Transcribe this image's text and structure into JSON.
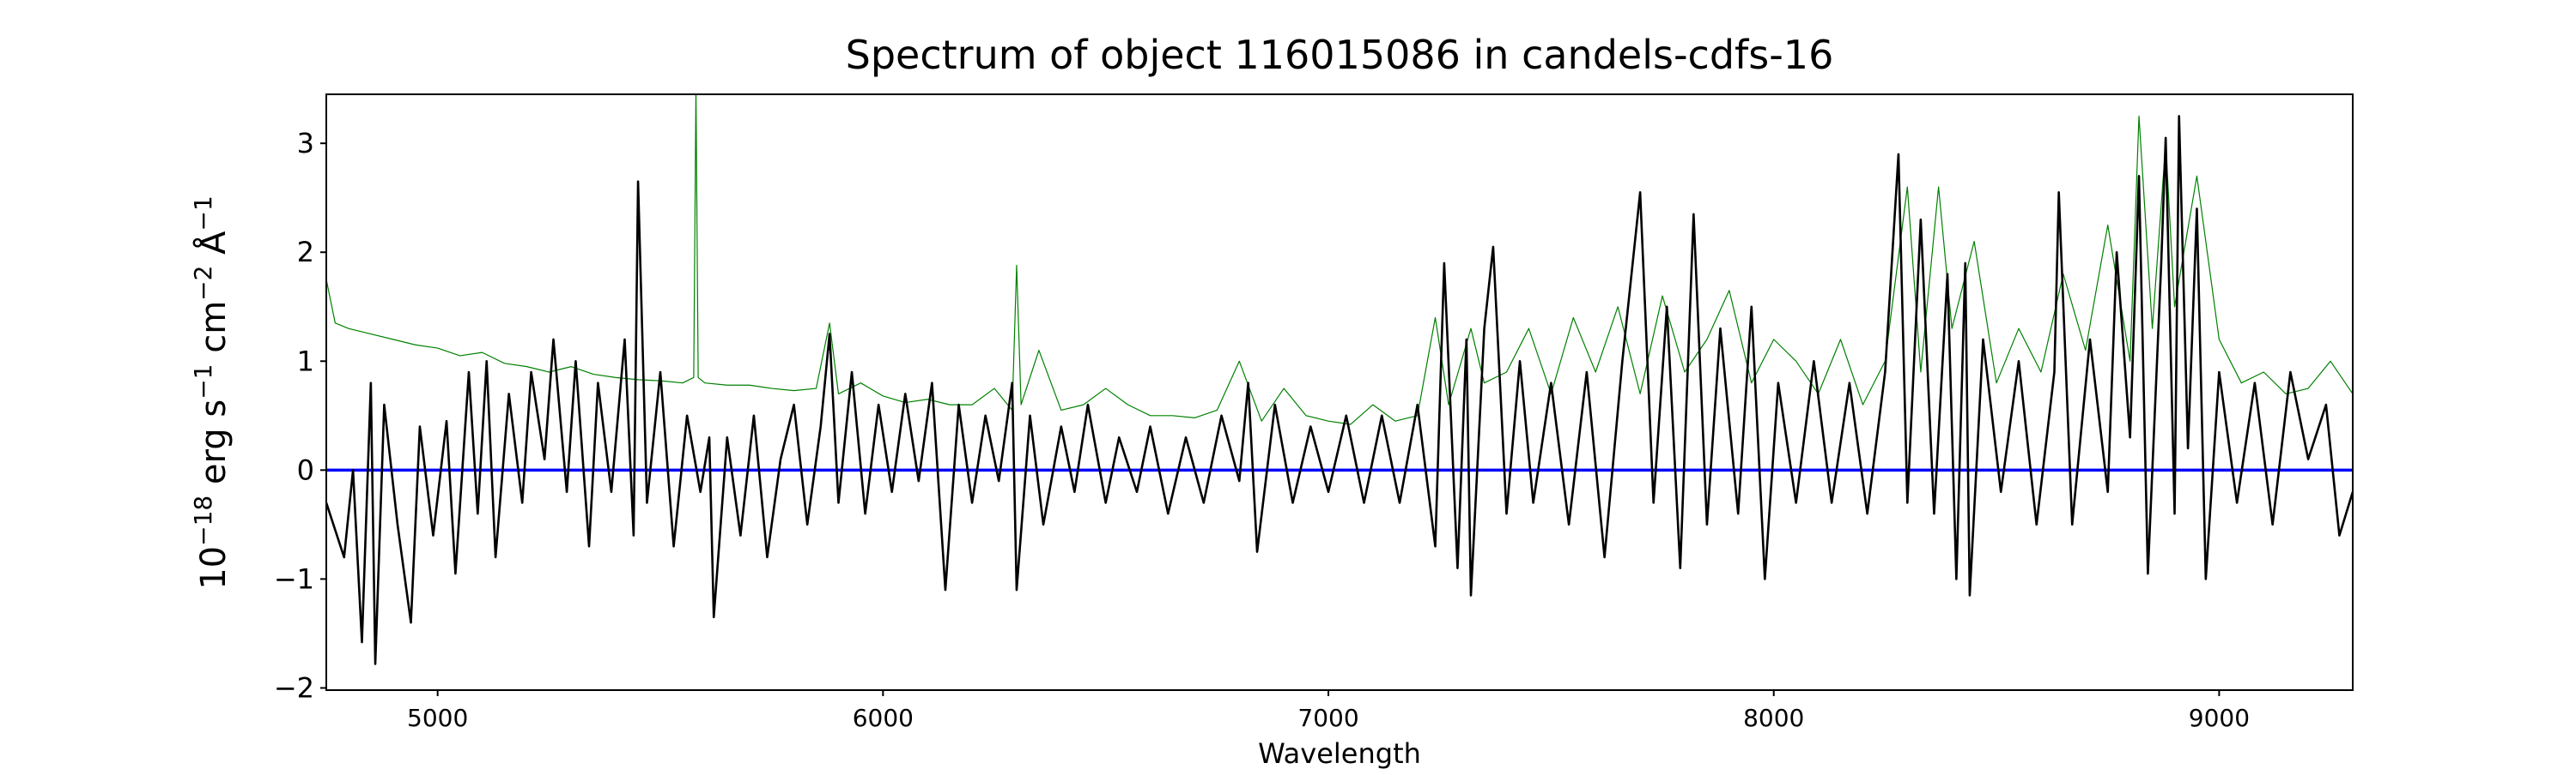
{
  "chart_data": {
    "type": "line",
    "title": "Spectrum of object 116015086 in candels-cdfs-16",
    "xlabel": "Wavelength",
    "ylabel": "10^{-18} erg s^{-1} cm^{-2} Å^{-1}",
    "ylabel_parts": {
      "base": "10",
      "exp1": "−18",
      "t1": " erg s",
      "exp2": "−1",
      "t2": " cm",
      "exp3": "−2",
      "t3": " Å",
      "exp4": "−1"
    },
    "xlim": [
      4750,
      9300
    ],
    "ylim": [
      -2.02,
      3.45
    ],
    "xticks": [
      5000,
      6000,
      7000,
      8000,
      9000
    ],
    "yticks": [
      -2,
      -1,
      0,
      1,
      2,
      3
    ],
    "grid": false,
    "series": [
      {
        "color": "#008000",
        "width": "thin",
        "points": [
          [
            4750,
            1.75
          ],
          [
            4770,
            1.35
          ],
          [
            4800,
            1.3
          ],
          [
            4850,
            1.25
          ],
          [
            4900,
            1.2
          ],
          [
            4950,
            1.15
          ],
          [
            5000,
            1.12
          ],
          [
            5050,
            1.05
          ],
          [
            5100,
            1.08
          ],
          [
            5150,
            0.98
          ],
          [
            5200,
            0.95
          ],
          [
            5250,
            0.9
          ],
          [
            5300,
            0.95
          ],
          [
            5350,
            0.88
          ],
          [
            5400,
            0.85
          ],
          [
            5450,
            0.83
          ],
          [
            5500,
            0.82
          ],
          [
            5550,
            0.8
          ],
          [
            5575,
            0.85
          ],
          [
            5580,
            3.5
          ],
          [
            5585,
            0.85
          ],
          [
            5600,
            0.8
          ],
          [
            5650,
            0.78
          ],
          [
            5700,
            0.78
          ],
          [
            5750,
            0.75
          ],
          [
            5800,
            0.73
          ],
          [
            5850,
            0.75
          ],
          [
            5880,
            1.35
          ],
          [
            5900,
            0.7
          ],
          [
            5950,
            0.8
          ],
          [
            6000,
            0.68
          ],
          [
            6050,
            0.62
          ],
          [
            6100,
            0.65
          ],
          [
            6150,
            0.6
          ],
          [
            6200,
            0.6
          ],
          [
            6250,
            0.75
          ],
          [
            6290,
            0.55
          ],
          [
            6300,
            1.88
          ],
          [
            6310,
            0.6
          ],
          [
            6350,
            1.1
          ],
          [
            6400,
            0.55
          ],
          [
            6450,
            0.6
          ],
          [
            6500,
            0.75
          ],
          [
            6550,
            0.6
          ],
          [
            6600,
            0.5
          ],
          [
            6650,
            0.5
          ],
          [
            6700,
            0.48
          ],
          [
            6750,
            0.55
          ],
          [
            6800,
            1.0
          ],
          [
            6850,
            0.45
          ],
          [
            6900,
            0.75
          ],
          [
            6950,
            0.5
          ],
          [
            7000,
            0.45
          ],
          [
            7050,
            0.42
          ],
          [
            7100,
            0.6
          ],
          [
            7150,
            0.45
          ],
          [
            7200,
            0.5
          ],
          [
            7240,
            1.4
          ],
          [
            7270,
            0.6
          ],
          [
            7320,
            1.3
          ],
          [
            7350,
            0.8
          ],
          [
            7400,
            0.9
          ],
          [
            7450,
            1.3
          ],
          [
            7500,
            0.7
          ],
          [
            7550,
            1.4
          ],
          [
            7600,
            0.9
          ],
          [
            7650,
            1.5
          ],
          [
            7700,
            0.7
          ],
          [
            7750,
            1.6
          ],
          [
            7800,
            0.9
          ],
          [
            7850,
            1.2
          ],
          [
            7900,
            1.65
          ],
          [
            7950,
            0.8
          ],
          [
            8000,
            1.2
          ],
          [
            8050,
            1.0
          ],
          [
            8100,
            0.7
          ],
          [
            8150,
            1.2
          ],
          [
            8200,
            0.6
          ],
          [
            8250,
            1.0
          ],
          [
            8300,
            2.6
          ],
          [
            8330,
            0.9
          ],
          [
            8370,
            2.6
          ],
          [
            8400,
            1.3
          ],
          [
            8450,
            2.1
          ],
          [
            8500,
            0.8
          ],
          [
            8550,
            1.3
          ],
          [
            8600,
            0.9
          ],
          [
            8650,
            1.8
          ],
          [
            8700,
            1.1
          ],
          [
            8750,
            2.25
          ],
          [
            8800,
            1.0
          ],
          [
            8820,
            3.25
          ],
          [
            8850,
            1.3
          ],
          [
            8880,
            3.0
          ],
          [
            8900,
            1.5
          ],
          [
            8950,
            2.7
          ],
          [
            9000,
            1.2
          ],
          [
            9050,
            0.8
          ],
          [
            9100,
            0.9
          ],
          [
            9150,
            0.7
          ],
          [
            9200,
            0.75
          ],
          [
            9250,
            1.0
          ],
          [
            9300,
            0.7
          ]
        ]
      },
      {
        "color": "#0000ff",
        "width": "medium",
        "points": [
          [
            4750,
            0
          ],
          [
            9300,
            0
          ]
        ]
      },
      {
        "color": "#000000",
        "width": "thick",
        "points": [
          [
            4750,
            -0.3
          ],
          [
            4790,
            -0.8
          ],
          [
            4810,
            0.0
          ],
          [
            4830,
            -1.58
          ],
          [
            4850,
            0.8
          ],
          [
            4860,
            -1.78
          ],
          [
            4880,
            0.6
          ],
          [
            4910,
            -0.5
          ],
          [
            4940,
            -1.4
          ],
          [
            4960,
            0.4
          ],
          [
            4990,
            -0.6
          ],
          [
            5020,
            0.45
          ],
          [
            5040,
            -0.95
          ],
          [
            5070,
            0.9
          ],
          [
            5090,
            -0.4
          ],
          [
            5110,
            1.0
          ],
          [
            5130,
            -0.8
          ],
          [
            5160,
            0.7
          ],
          [
            5190,
            -0.3
          ],
          [
            5210,
            0.9
          ],
          [
            5240,
            0.1
          ],
          [
            5260,
            1.2
          ],
          [
            5290,
            -0.2
          ],
          [
            5310,
            1.0
          ],
          [
            5340,
            -0.7
          ],
          [
            5360,
            0.8
          ],
          [
            5390,
            -0.2
          ],
          [
            5420,
            1.2
          ],
          [
            5440,
            -0.6
          ],
          [
            5450,
            2.65
          ],
          [
            5470,
            -0.3
          ],
          [
            5500,
            0.9
          ],
          [
            5530,
            -0.7
          ],
          [
            5560,
            0.5
          ],
          [
            5590,
            -0.2
          ],
          [
            5610,
            0.3
          ],
          [
            5620,
            -1.35
          ],
          [
            5650,
            0.3
          ],
          [
            5680,
            -0.6
          ],
          [
            5710,
            0.5
          ],
          [
            5740,
            -0.8
          ],
          [
            5770,
            0.1
          ],
          [
            5800,
            0.6
          ],
          [
            5830,
            -0.5
          ],
          [
            5860,
            0.4
          ],
          [
            5880,
            1.25
          ],
          [
            5900,
            -0.3
          ],
          [
            5930,
            0.9
          ],
          [
            5960,
            -0.4
          ],
          [
            5990,
            0.6
          ],
          [
            6020,
            -0.2
          ],
          [
            6050,
            0.7
          ],
          [
            6080,
            -0.1
          ],
          [
            6110,
            0.8
          ],
          [
            6140,
            -1.1
          ],
          [
            6170,
            0.6
          ],
          [
            6200,
            -0.3
          ],
          [
            6230,
            0.5
          ],
          [
            6260,
            -0.1
          ],
          [
            6290,
            0.8
          ],
          [
            6300,
            -1.1
          ],
          [
            6330,
            0.5
          ],
          [
            6360,
            -0.5
          ],
          [
            6400,
            0.4
          ],
          [
            6430,
            -0.2
          ],
          [
            6460,
            0.6
          ],
          [
            6500,
            -0.3
          ],
          [
            6530,
            0.3
          ],
          [
            6570,
            -0.2
          ],
          [
            6600,
            0.4
          ],
          [
            6640,
            -0.4
          ],
          [
            6680,
            0.3
          ],
          [
            6720,
            -0.3
          ],
          [
            6760,
            0.5
          ],
          [
            6800,
            -0.1
          ],
          [
            6820,
            0.8
          ],
          [
            6840,
            -0.75
          ],
          [
            6880,
            0.6
          ],
          [
            6920,
            -0.3
          ],
          [
            6960,
            0.4
          ],
          [
            7000,
            -0.2
          ],
          [
            7040,
            0.5
          ],
          [
            7080,
            -0.3
          ],
          [
            7120,
            0.5
          ],
          [
            7160,
            -0.3
          ],
          [
            7200,
            0.6
          ],
          [
            7240,
            -0.7
          ],
          [
            7260,
            1.9
          ],
          [
            7290,
            -0.9
          ],
          [
            7310,
            1.2
          ],
          [
            7320,
            -1.15
          ],
          [
            7350,
            1.3
          ],
          [
            7370,
            2.05
          ],
          [
            7400,
            -0.4
          ],
          [
            7430,
            1.0
          ],
          [
            7460,
            -0.3
          ],
          [
            7500,
            0.8
          ],
          [
            7540,
            -0.5
          ],
          [
            7580,
            0.9
          ],
          [
            7620,
            -0.8
          ],
          [
            7660,
            1.0
          ],
          [
            7700,
            2.55
          ],
          [
            7730,
            -0.3
          ],
          [
            7760,
            1.5
          ],
          [
            7790,
            -0.9
          ],
          [
            7820,
            2.35
          ],
          [
            7850,
            -0.5
          ],
          [
            7880,
            1.3
          ],
          [
            7920,
            -0.4
          ],
          [
            7950,
            1.5
          ],
          [
            7980,
            -1.0
          ],
          [
            8010,
            0.8
          ],
          [
            8050,
            -0.3
          ],
          [
            8090,
            1.0
          ],
          [
            8130,
            -0.3
          ],
          [
            8170,
            0.8
          ],
          [
            8210,
            -0.4
          ],
          [
            8250,
            0.9
          ],
          [
            8280,
            2.9
          ],
          [
            8300,
            -0.3
          ],
          [
            8330,
            2.3
          ],
          [
            8360,
            -0.4
          ],
          [
            8390,
            1.8
          ],
          [
            8410,
            -1.0
          ],
          [
            8430,
            1.9
          ],
          [
            8440,
            -1.15
          ],
          [
            8470,
            1.2
          ],
          [
            8510,
            -0.2
          ],
          [
            8550,
            1.0
          ],
          [
            8590,
            -0.5
          ],
          [
            8630,
            0.9
          ],
          [
            8640,
            2.55
          ],
          [
            8670,
            -0.5
          ],
          [
            8710,
            1.2
          ],
          [
            8750,
            -0.2
          ],
          [
            8770,
            2.0
          ],
          [
            8800,
            0.3
          ],
          [
            8820,
            2.7
          ],
          [
            8840,
            -0.95
          ],
          [
            8870,
            1.9
          ],
          [
            8880,
            3.05
          ],
          [
            8900,
            -0.4
          ],
          [
            8910,
            3.25
          ],
          [
            8930,
            0.2
          ],
          [
            8950,
            2.4
          ],
          [
            8970,
            -1.0
          ],
          [
            9000,
            0.9
          ],
          [
            9040,
            -0.3
          ],
          [
            9080,
            0.8
          ],
          [
            9120,
            -0.5
          ],
          [
            9160,
            0.9
          ],
          [
            9200,
            0.1
          ],
          [
            9240,
            0.6
          ],
          [
            9270,
            -0.6
          ],
          [
            9300,
            -0.2
          ]
        ]
      }
    ]
  }
}
